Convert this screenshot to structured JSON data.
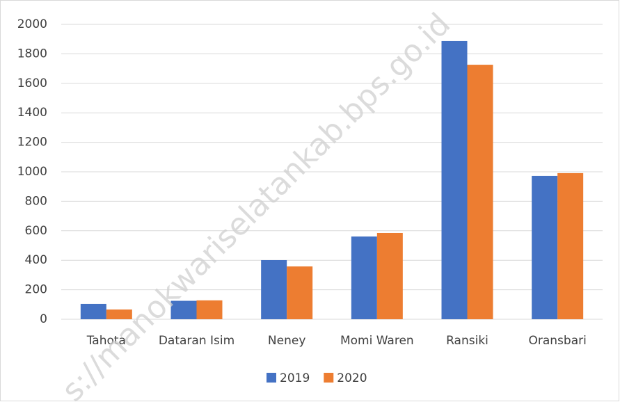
{
  "chart_data": {
    "type": "bar",
    "categories": [
      "Tahota",
      "Dataran Isim",
      "Neney",
      "Momi Waren",
      "Ransiki",
      "Oransbari"
    ],
    "series": [
      {
        "name": "2019",
        "color": "#4472c4",
        "values": [
          104,
          125,
          401,
          561,
          1887,
          972
        ]
      },
      {
        "name": "2020",
        "color": "#ed7d31",
        "values": [
          66,
          128,
          358,
          585,
          1726,
          991
        ]
      }
    ],
    "ylim": [
      0,
      2000
    ],
    "yticks": [
      0,
      200,
      400,
      600,
      800,
      1000,
      1200,
      1400,
      1600,
      1800,
      2000
    ],
    "grid": true,
    "legend": "bottom",
    "watermark": "s://manokwariselatankab.bps.go.id"
  }
}
